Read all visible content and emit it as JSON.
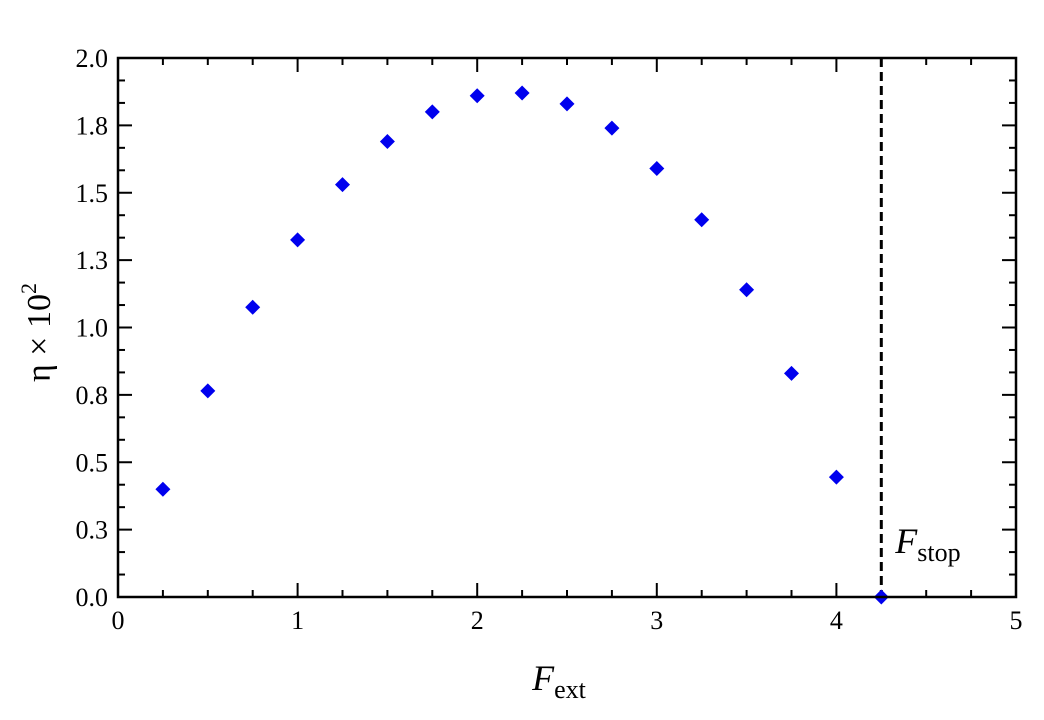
{
  "chart_data": {
    "type": "scatter",
    "xlabel": "F",
    "xlabel_sub": "ext",
    "ylabel": "η × 10",
    "ylabel_sup": "2",
    "xlim": [
      0,
      5
    ],
    "ylim": [
      0,
      2.0
    ],
    "xticks": [
      0,
      1,
      2,
      3,
      4,
      5
    ],
    "xtick_labels": [
      "0",
      "1",
      "2",
      "3",
      "4",
      "5"
    ],
    "yticks": [
      0,
      0.25,
      0.5,
      0.75,
      1.0,
      1.25,
      1.5,
      1.75,
      2.0
    ],
    "ytick_labels": [
      "0.0",
      "0.3",
      "0.5",
      "0.8",
      "1.0",
      "1.3",
      "1.5",
      "1.8",
      "2.0"
    ],
    "grid": false,
    "series": [
      {
        "color": "#0000ee",
        "marker": "diamond",
        "x": [
          0.25,
          0.5,
          0.75,
          1.0,
          1.25,
          1.5,
          1.75,
          2.0,
          2.25,
          2.5,
          2.75,
          3.0,
          3.25,
          3.5,
          3.75,
          4.0,
          4.25
        ],
        "y": [
          0.4,
          0.765,
          1.075,
          1.325,
          1.53,
          1.69,
          1.8,
          1.86,
          1.87,
          1.83,
          1.74,
          1.59,
          1.4,
          1.14,
          0.83,
          0.445,
          0.0
        ]
      }
    ],
    "vline": {
      "x": 4.25,
      "style": "dashed",
      "label": "F",
      "label_sub": "stop"
    }
  }
}
